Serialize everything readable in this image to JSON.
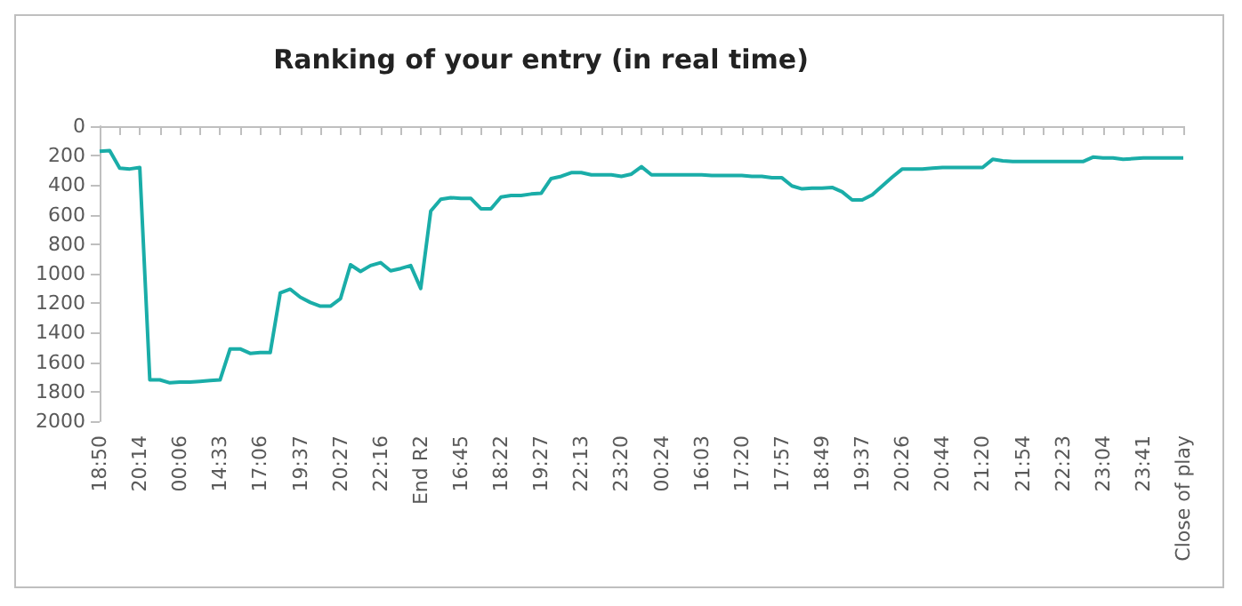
{
  "chart_data": {
    "type": "line",
    "title": "Ranking of your entry (in real time)",
    "categories": [
      "18:50",
      null,
      null,
      null,
      "20:14",
      null,
      null,
      null,
      "00:06",
      null,
      null,
      null,
      "14:33",
      null,
      null,
      null,
      "17:06",
      null,
      null,
      null,
      "19:37",
      null,
      null,
      null,
      "20:27",
      null,
      null,
      null,
      "22:16",
      null,
      null,
      null,
      "End R2",
      null,
      null,
      null,
      "16:45",
      null,
      null,
      null,
      "18:22",
      null,
      null,
      null,
      "19:27",
      null,
      null,
      null,
      "22:13",
      null,
      null,
      null,
      "23:20",
      null,
      null,
      null,
      "00:24",
      null,
      null,
      null,
      "16:03",
      null,
      null,
      null,
      "17:20",
      null,
      null,
      null,
      "17:57",
      null,
      null,
      null,
      "18:49",
      null,
      null,
      null,
      "19:37",
      null,
      null,
      null,
      "20:26",
      null,
      null,
      null,
      "20:44",
      null,
      null,
      null,
      "21:20",
      null,
      null,
      null,
      "21:54",
      null,
      null,
      null,
      "22:23",
      null,
      null,
      null,
      "23:04",
      null,
      null,
      null,
      "23:41",
      null,
      null,
      null,
      "Close of play"
    ],
    "series": [
      {
        "color": "#1aada8",
        "values": [
          170,
          165,
          285,
          290,
          280,
          1720,
          1720,
          1740,
          1735,
          1735,
          1730,
          1725,
          1720,
          1510,
          1510,
          1540,
          1535,
          1535,
          1130,
          1105,
          1160,
          1195,
          1220,
          1220,
          1170,
          940,
          985,
          945,
          925,
          980,
          965,
          945,
          1100,
          575,
          495,
          485,
          490,
          490,
          560,
          560,
          480,
          470,
          470,
          460,
          455,
          355,
          340,
          315,
          315,
          330,
          330,
          330,
          340,
          325,
          275,
          330,
          330,
          330,
          330,
          330,
          330,
          335,
          335,
          335,
          335,
          340,
          340,
          350,
          350,
          405,
          425,
          420,
          420,
          415,
          445,
          500,
          500,
          465,
          405,
          345,
          290,
          290,
          290,
          285,
          280,
          280,
          280,
          280,
          280,
          225,
          235,
          240,
          240,
          240,
          240,
          240,
          240,
          240,
          240,
          210,
          215,
          215,
          225,
          220,
          215,
          215,
          215,
          215,
          215
        ]
      }
    ],
    "ylim": [
      2000,
      0
    ],
    "yticks": [
      0,
      200,
      400,
      600,
      800,
      1000,
      1200,
      1400,
      1600,
      1800,
      2000
    ],
    "grid": false,
    "marker": "none",
    "line_style": "solid"
  }
}
